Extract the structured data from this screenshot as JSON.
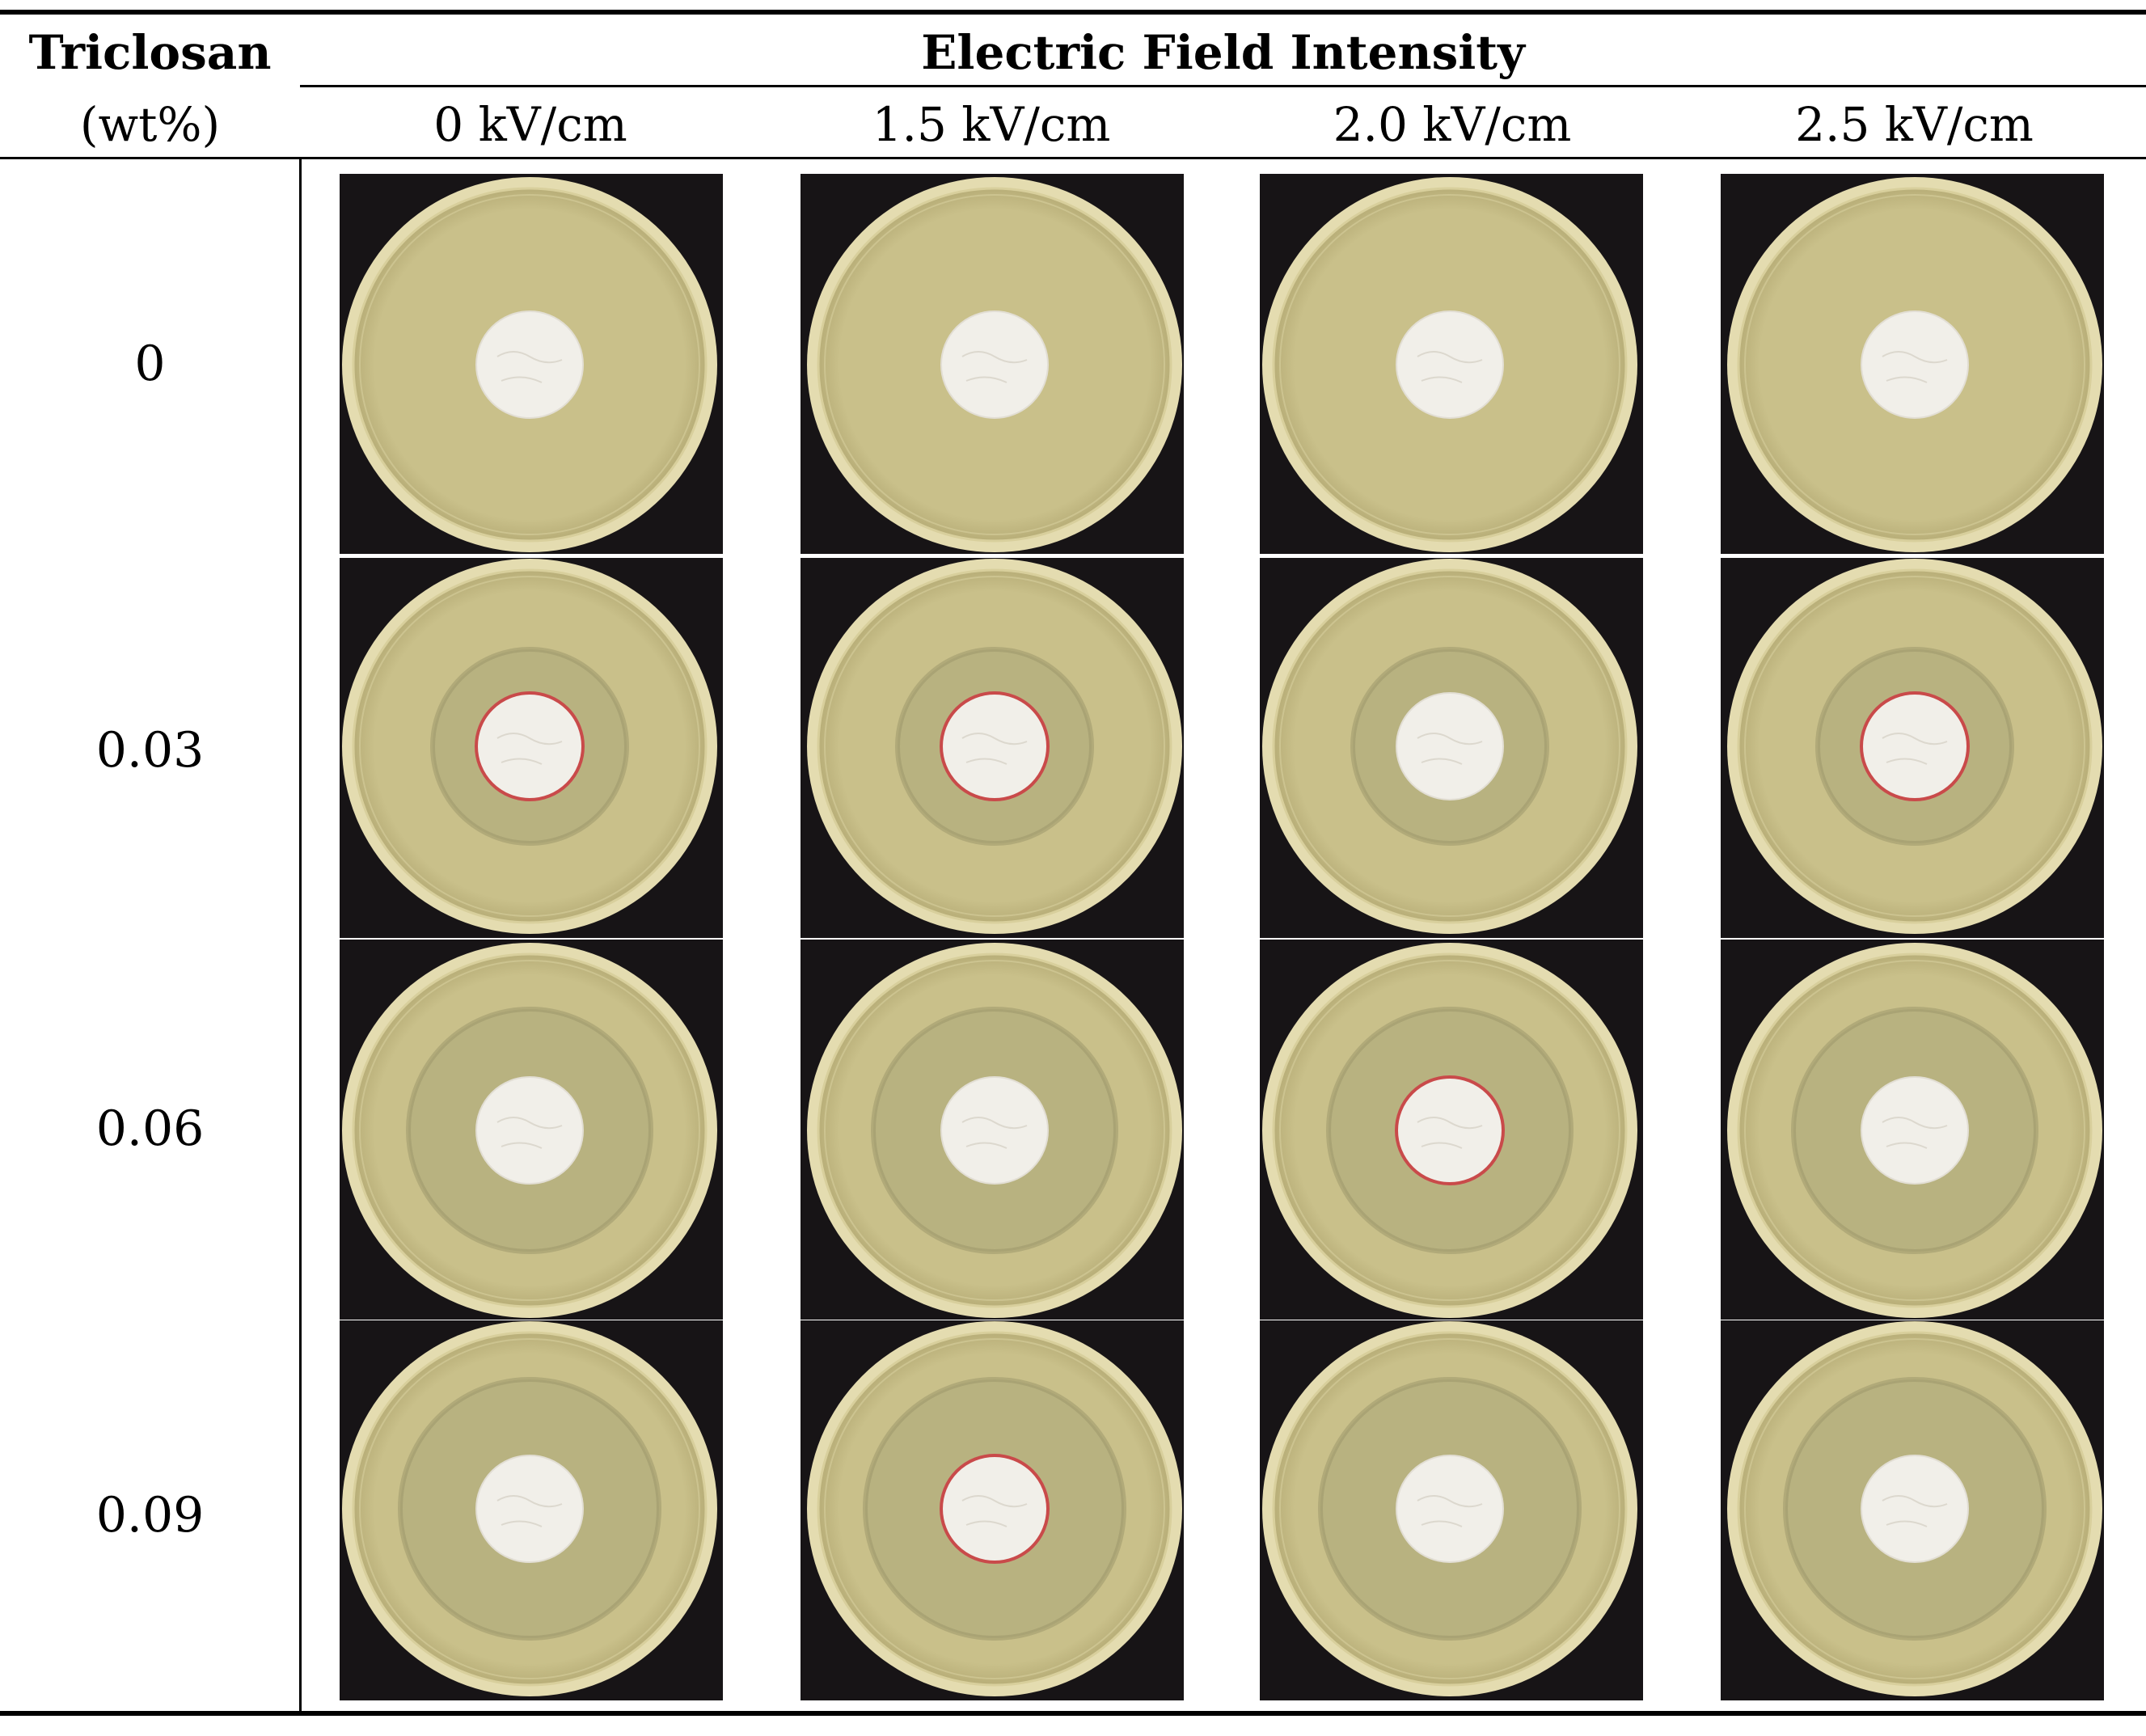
{
  "table": {
    "row_header_line1": "Triclosan",
    "row_header_line2": "(wt%)",
    "column_group_header": "Electric Field Intensity",
    "columns": [
      "0 kV/cm",
      "1.5 kV/cm",
      "2.0 kV/cm",
      "2.5 kV/cm"
    ],
    "rows": [
      "0",
      "0.03",
      "0.06",
      "0.09"
    ]
  },
  "colors": {
    "background": "#171416",
    "agar": "#c9c08a",
    "agar_edge": "#e4dcb0",
    "clear_zone": "#aaa579",
    "disc": "#f1efe9",
    "disc_rim_stained": "#c94a4a"
  },
  "cells": [
    [
      {
        "clear_zone": false,
        "stained_rim": false
      },
      {
        "clear_zone": false,
        "stained_rim": false
      },
      {
        "clear_zone": false,
        "stained_rim": false
      },
      {
        "clear_zone": false,
        "stained_rim": false
      }
    ],
    [
      {
        "clear_zone": true,
        "stained_rim": true
      },
      {
        "clear_zone": true,
        "stained_rim": true
      },
      {
        "clear_zone": true,
        "stained_rim": false
      },
      {
        "clear_zone": true,
        "stained_rim": true
      }
    ],
    [
      {
        "clear_zone": true,
        "stained_rim": false
      },
      {
        "clear_zone": true,
        "stained_rim": false
      },
      {
        "clear_zone": true,
        "stained_rim": true
      },
      {
        "clear_zone": true,
        "stained_rim": false
      }
    ],
    [
      {
        "clear_zone": true,
        "stained_rim": false
      },
      {
        "clear_zone": true,
        "stained_rim": true
      },
      {
        "clear_zone": true,
        "stained_rim": false
      },
      {
        "clear_zone": true,
        "stained_rim": false
      }
    ]
  ]
}
